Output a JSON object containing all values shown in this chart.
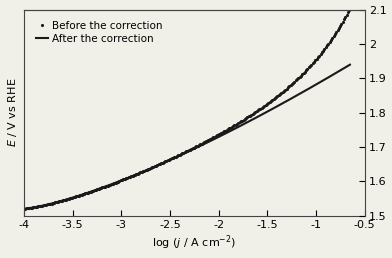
{
  "x_min": -4.0,
  "x_max": -0.6,
  "y_min": 1.5,
  "y_max": 2.1,
  "xlabel": "log ( j / A cm⁻²)",
  "ylabel": "E / V vs RHE",
  "legend_dotted": "Before the correction",
  "legend_solid": "After the correction",
  "E0": 1.52,
  "Ru": 0.73,
  "tafel_b": 0.055,
  "alpha": 0.5,
  "j0": 1e-08,
  "background_color": "#f0efe8",
  "line_color": "#1a1a1a",
  "dot_color": "#1a1a1a",
  "xticks": [
    -4,
    -3.5,
    -3,
    -2.5,
    -2,
    -1.5,
    -1,
    -0.5
  ],
  "yticks_right": [
    1.5,
    1.6,
    1.7,
    1.8,
    1.9,
    2.0,
    2.1
  ]
}
